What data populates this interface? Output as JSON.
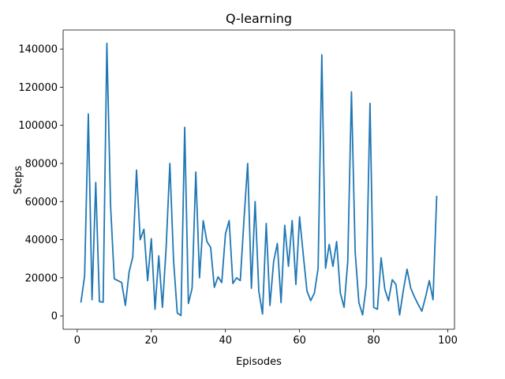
{
  "chart_data": {
    "type": "line",
    "title": "Q-learning",
    "xlabel": "Episodes",
    "ylabel": "Steps",
    "xlim": [
      -3.8,
      101.8
    ],
    "ylim": [
      -7000,
      150000
    ],
    "xticks": [
      0,
      20,
      40,
      60,
      80,
      100
    ],
    "yticks": [
      0,
      20000,
      40000,
      60000,
      80000,
      100000,
      120000,
      140000
    ],
    "grid": false,
    "legend": "none",
    "series": [
      {
        "color": "#1f77b4",
        "x": [
          1,
          2,
          3,
          4,
          5,
          6,
          7,
          8,
          9,
          10,
          11,
          12,
          13,
          14,
          15,
          16,
          17,
          18,
          19,
          20,
          21,
          22,
          23,
          24,
          25,
          26,
          27,
          28,
          29,
          30,
          31,
          32,
          33,
          34,
          35,
          36,
          37,
          38,
          39,
          40,
          41,
          42,
          43,
          44,
          45,
          46,
          47,
          48,
          49,
          50,
          51,
          52,
          53,
          54,
          55,
          56,
          57,
          58,
          59,
          60,
          61,
          62,
          63,
          64,
          65,
          66,
          67,
          68,
          69,
          70,
          71,
          72,
          73,
          74,
          75,
          76,
          77,
          78,
          79,
          80,
          81,
          82,
          83,
          84,
          85,
          86,
          87,
          88,
          89,
          90,
          91,
          92,
          93,
          94,
          95,
          96,
          97
        ],
        "y": [
          7000,
          21000,
          106000,
          8500,
          70000,
          7500,
          7200,
          143000,
          58000,
          19500,
          18500,
          17500,
          5500,
          23000,
          31000,
          76500,
          40000,
          45500,
          18500,
          40500,
          3500,
          31500,
          4500,
          36000,
          80000,
          29000,
          1500,
          200,
          99000,
          6500,
          14500,
          75500,
          20000,
          50000,
          39000,
          36000,
          15000,
          20500,
          17500,
          43000,
          50000,
          17000,
          20000,
          18500,
          50500,
          80000,
          14500,
          60000,
          13000,
          1000,
          48500,
          5500,
          28500,
          38000,
          7000,
          47500,
          26000,
          50000,
          16500,
          52000,
          32000,
          13000,
          8000,
          12000,
          25000,
          137000,
          25000,
          37500,
          26000,
          39000,
          12000,
          4500,
          28500,
          117500,
          33500,
          7000,
          500,
          16000,
          111500,
          4500,
          3500,
          30500,
          14000,
          8000,
          19000,
          16500,
          500,
          13500,
          24500,
          14500,
          10000,
          6000,
          2500,
          10000,
          18500,
          8500,
          63000
        ]
      }
    ]
  }
}
